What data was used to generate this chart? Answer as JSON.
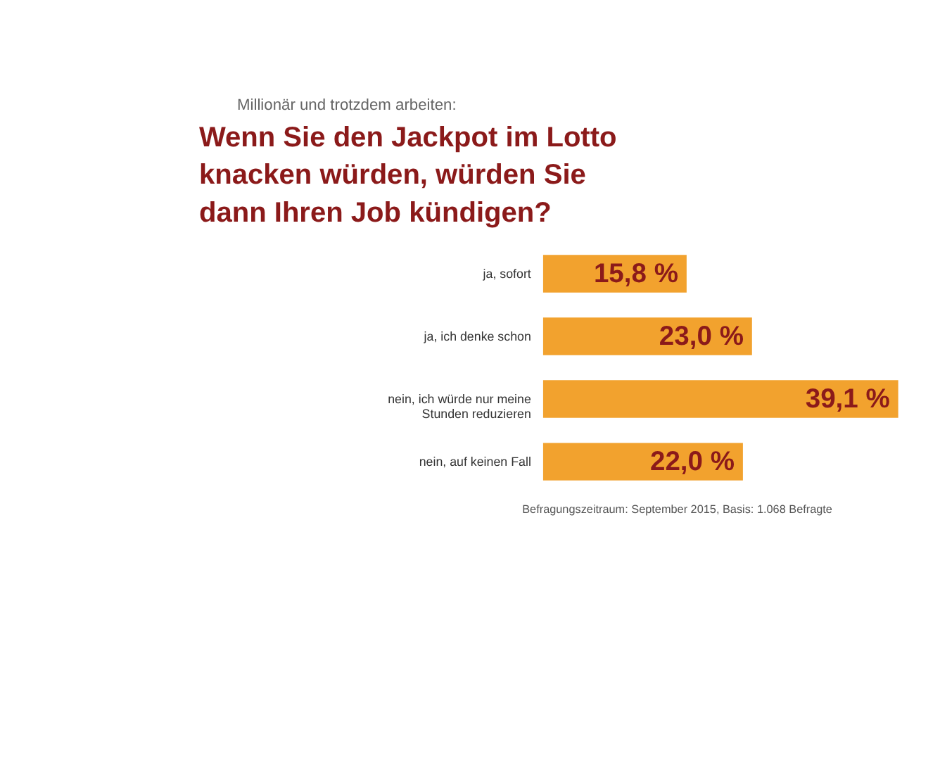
{
  "chart_data": {
    "type": "bar",
    "orientation": "horizontal",
    "subtitle": "Millionär und trotzdem arbeiten:",
    "title": "Wenn Sie den Jackpot im Lotto knacken würden, würden Sie dann Ihren Job kündigen?",
    "categories": [
      "ja, sofort",
      "ja, ich denke schon",
      "nein, ich würde nur meine Stunden reduzieren",
      "nein, auf keinen Fall"
    ],
    "values": [
      15.8,
      23.0,
      39.1,
      22.0
    ],
    "value_labels": [
      "15,8 %",
      "23,0 %",
      "39,1 %",
      "22,0 %"
    ],
    "color": "#f2a22e",
    "tick_labels": "y",
    "annotations": [
      "Befragungszeitraum: September 2015, Basis: 1.068 Befragte"
    ]
  }
}
